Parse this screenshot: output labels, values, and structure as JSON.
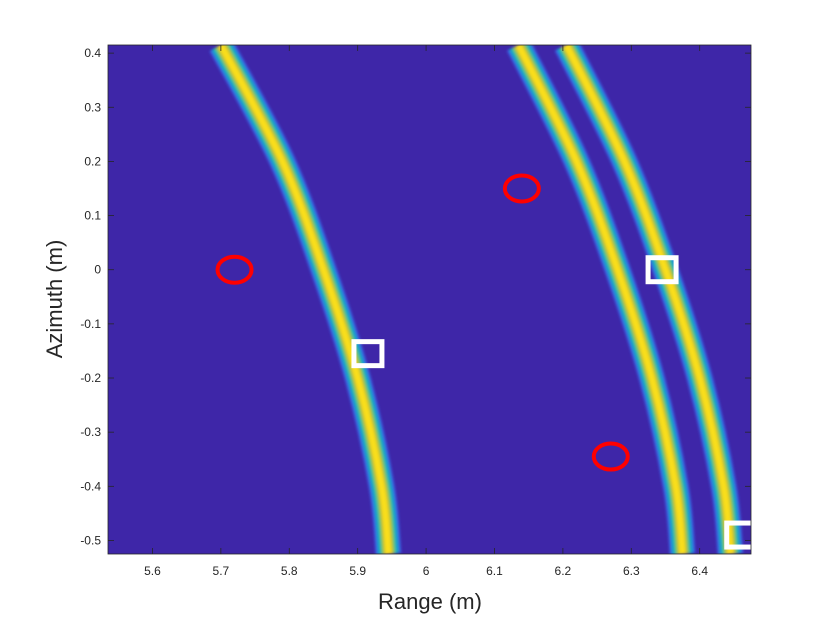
{
  "chart_data": {
    "type": "heatmap",
    "title": "",
    "xlabel": "Range (m)",
    "ylabel": "Azimuth (m)",
    "xlim": [
      5.535,
      6.475
    ],
    "ylim": [
      -0.525,
      0.415
    ],
    "x_ticks": [
      5.6,
      5.7,
      5.8,
      5.9,
      6,
      6.1,
      6.2,
      6.3,
      6.4
    ],
    "x_tick_labels": [
      "5.6",
      "5.7",
      "5.8",
      "5.9",
      "6",
      "6.1",
      "6.2",
      "6.3",
      "6.4"
    ],
    "y_ticks": [
      0.4,
      0.3,
      0.2,
      0.1,
      0,
      -0.1,
      -0.2,
      -0.3,
      -0.4,
      -0.5
    ],
    "y_tick_labels": [
      "0.4",
      "0.3",
      "0.2",
      "0.1",
      "0",
      "-0.1",
      "-0.2",
      "-0.3",
      "-0.4",
      "-0.5"
    ],
    "colormap": "parula",
    "background_color": "#3E26A8",
    "grid": false,
    "arcs": [
      {
        "points": [
          [
            5.7,
            0.415
          ],
          [
            5.79,
            0.2
          ],
          [
            5.85,
            0.0
          ],
          [
            5.9,
            -0.2
          ],
          [
            5.935,
            -0.4
          ],
          [
            5.945,
            -0.525
          ]
        ]
      },
      {
        "points": [
          [
            6.135,
            0.415
          ],
          [
            6.22,
            0.2
          ],
          [
            6.28,
            0.0
          ],
          [
            6.33,
            -0.2
          ],
          [
            6.365,
            -0.4
          ],
          [
            6.375,
            -0.525
          ]
        ]
      },
      {
        "points": [
          [
            6.205,
            0.415
          ],
          [
            6.29,
            0.2
          ],
          [
            6.35,
            0.0
          ],
          [
            6.4,
            -0.2
          ],
          [
            6.435,
            -0.4
          ],
          [
            6.445,
            -0.525
          ]
        ]
      }
    ],
    "circle_markers": [
      {
        "x": 5.72,
        "y": 0.0,
        "color": "#FF0000"
      },
      {
        "x": 6.14,
        "y": 0.15,
        "color": "#FF0000"
      },
      {
        "x": 6.27,
        "y": -0.345,
        "color": "#FF0000"
      }
    ],
    "square_markers": [
      {
        "x": 5.915,
        "y": -0.155,
        "color": "#FFFFFF"
      },
      {
        "x": 6.345,
        "y": 0.0,
        "color": "#FFFFFF"
      },
      {
        "x": 6.46,
        "y": -0.49,
        "color": "#FFFFFF"
      }
    ]
  }
}
